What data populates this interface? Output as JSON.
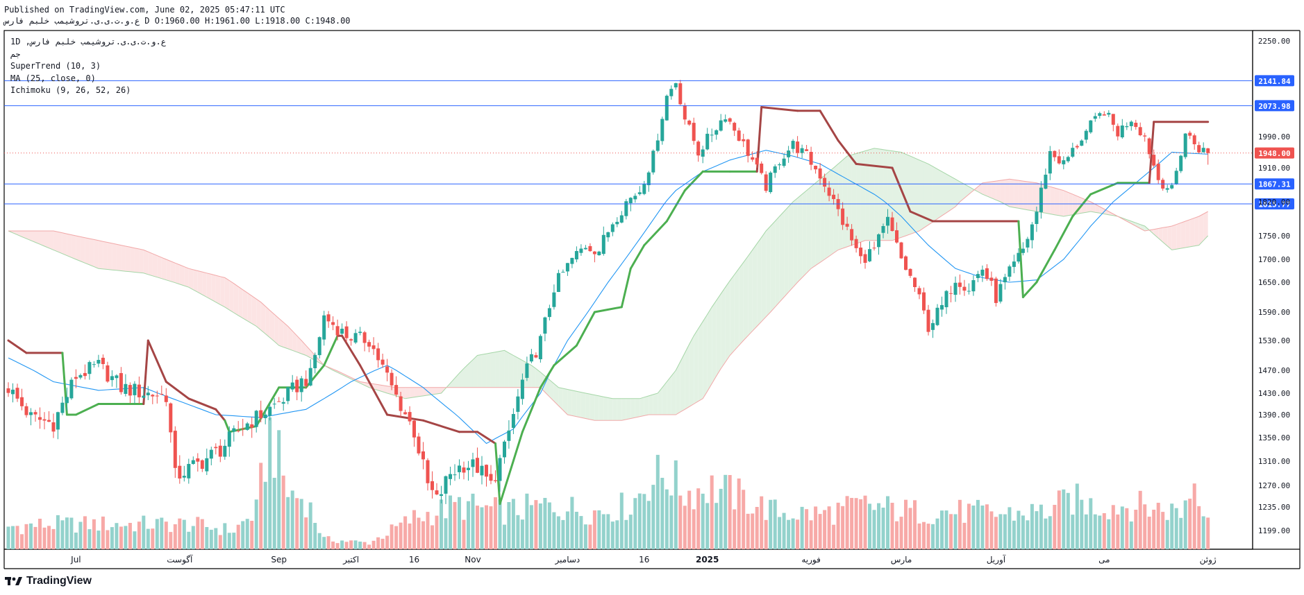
{
  "header": {
    "published": "Published on TradingView.com, June 02, 2025 05:47:11 UTC",
    "ohlc": "ع.و.ت.ی.ی.تروشیمب خلبم فارس D O:1960.00 H:1961.00 L:1918.00 C:1948.00"
  },
  "legend": {
    "symbol": "1D ,ع.و.ت.ی.ی.تروشیمب خلبم فارس",
    "exchange": "جم",
    "supertrend": "SuperTrend (10, 3)",
    "ma": "MA (25, close, 0)",
    "ichimoku": "Ichimoku (9, 26, 52, 26)"
  },
  "footer": {
    "brand": "TradingView"
  },
  "colors": {
    "up": "#26a69a",
    "down": "#ef5350",
    "vol_up": "#93d2cc",
    "vol_down": "#f7a9a7",
    "supertrend_up": "#4caf50",
    "supertrend_down": "#a54545",
    "ma": "#2196f3",
    "hline": "#2962ff",
    "cloud_bull": "#e3f2e4",
    "cloud_bear": "#fce4e4"
  },
  "chart_data": {
    "type": "candlestick",
    "interval": "1D",
    "y_axis": {
      "ticks": [
        2250,
        1990,
        1910,
        1820,
        1750,
        1700,
        1650,
        1590,
        1530,
        1470,
        1430,
        1390,
        1350,
        1310,
        1270,
        1235,
        1199
      ],
      "tick_labels": [
        "2250.00",
        "1990.00",
        "1910.00",
        "1820.00",
        "1750.00",
        "1700.00",
        "1650.00",
        "1590.00",
        "1530.00",
        "1470.00",
        "1430.00",
        "1390.00",
        "1350.00",
        "1310.00",
        "1270.00",
        "1235.00",
        "1199.00"
      ]
    },
    "x_axis": {
      "labels": [
        {
          "text": "Jul",
          "index": 15
        },
        {
          "text": "آگوست",
          "index": 38
        },
        {
          "text": "Sep",
          "index": 60
        },
        {
          "text": "اکتبر",
          "index": 76
        },
        {
          "text": "16",
          "index": 90
        },
        {
          "text": "Nov",
          "index": 103
        },
        {
          "text": "دسامبر",
          "index": 124
        },
        {
          "text": "16",
          "index": 141
        },
        {
          "text": "2025",
          "index": 155
        },
        {
          "text": "فوریه",
          "index": 178
        },
        {
          "text": "مارس",
          "index": 198
        },
        {
          "text": "آوریل",
          "index": 219
        },
        {
          "text": "می",
          "index": 243
        },
        {
          "text": "ژوئن",
          "index": 266
        }
      ],
      "bold": [
        "2025"
      ]
    },
    "price_lines": [
      {
        "value": 2141.84,
        "label": "2141.84"
      },
      {
        "value": 2073.98,
        "label": "2073.98"
      },
      {
        "value": 1867.31,
        "label": "1867.31"
      },
      {
        "value": 1815.77,
        "label": "1815.77"
      }
    ],
    "last_price": {
      "value": 1948.0,
      "label": "1948.00"
    },
    "ohlc_last": {
      "open": 1960.0,
      "high": 1961.0,
      "low": 1918.0,
      "close": 1948.0
    },
    "price_anchors": [
      [
        0,
        1440
      ],
      [
        5,
        1385
      ],
      [
        10,
        1375
      ],
      [
        15,
        1460
      ],
      [
        20,
        1480
      ],
      [
        25,
        1440
      ],
      [
        30,
        1430
      ],
      [
        35,
        1425
      ],
      [
        37,
        1285
      ],
      [
        42,
        1305
      ],
      [
        47,
        1330
      ],
      [
        52,
        1370
      ],
      [
        57,
        1395
      ],
      [
        61,
        1420
      ],
      [
        65,
        1450
      ],
      [
        67,
        1460
      ],
      [
        70,
        1580
      ],
      [
        75,
        1540
      ],
      [
        80,
        1530
      ],
      [
        85,
        1440
      ],
      [
        90,
        1360
      ],
      [
        93,
        1270
      ],
      [
        95,
        1245
      ],
      [
        98,
        1290
      ],
      [
        101,
        1305
      ],
      [
        104,
        1300
      ],
      [
        107,
        1270
      ],
      [
        110,
        1330
      ],
      [
        114,
        1450
      ],
      [
        118,
        1530
      ],
      [
        121,
        1640
      ],
      [
        125,
        1700
      ],
      [
        128,
        1730
      ],
      [
        131,
        1720
      ],
      [
        134,
        1780
      ],
      [
        137,
        1820
      ],
      [
        140,
        1850
      ],
      [
        143,
        1940
      ],
      [
        146,
        2100
      ],
      [
        148,
        2140
      ],
      [
        150,
        2040
      ],
      [
        153,
        1950
      ],
      [
        156,
        2000
      ],
      [
        159,
        2050
      ],
      [
        162,
        1990
      ],
      [
        165,
        1930
      ],
      [
        168,
        1860
      ],
      [
        171,
        1930
      ],
      [
        174,
        1970
      ],
      [
        177,
        1940
      ],
      [
        180,
        1890
      ],
      [
        183,
        1820
      ],
      [
        186,
        1760
      ],
      [
        189,
        1700
      ],
      [
        192,
        1720
      ],
      [
        195,
        1780
      ],
      [
        198,
        1700
      ],
      [
        201,
        1640
      ],
      [
        204,
        1560
      ],
      [
        207,
        1600
      ],
      [
        210,
        1660
      ],
      [
        213,
        1640
      ],
      [
        216,
        1680
      ],
      [
        219,
        1620
      ],
      [
        222,
        1670
      ],
      [
        225,
        1720
      ],
      [
        228,
        1800
      ],
      [
        231,
        1950
      ],
      [
        234,
        1920
      ],
      [
        237,
        1970
      ],
      [
        240,
        2020
      ],
      [
        243,
        2060
      ],
      [
        246,
        2000
      ],
      [
        249,
        2040
      ],
      [
        252,
        1990
      ],
      [
        255,
        1880
      ],
      [
        258,
        1850
      ],
      [
        261,
        2000
      ],
      [
        264,
        1960
      ],
      [
        266,
        1948
      ]
    ],
    "volume_anchors": [
      [
        0,
        0.18
      ],
      [
        10,
        0.2
      ],
      [
        20,
        0.2
      ],
      [
        30,
        0.2
      ],
      [
        40,
        0.2
      ],
      [
        50,
        0.15
      ],
      [
        55,
        0.3
      ],
      [
        58,
        0.95
      ],
      [
        62,
        0.45
      ],
      [
        66,
        0.4
      ],
      [
        70,
        0.08
      ],
      [
        80,
        0.05
      ],
      [
        90,
        0.25
      ],
      [
        100,
        0.35
      ],
      [
        110,
        0.3
      ],
      [
        120,
        0.35
      ],
      [
        130,
        0.3
      ],
      [
        138,
        0.35
      ],
      [
        142,
        0.55
      ],
      [
        146,
        0.6
      ],
      [
        150,
        0.45
      ],
      [
        155,
        0.5
      ],
      [
        160,
        0.45
      ],
      [
        170,
        0.3
      ],
      [
        180,
        0.28
      ],
      [
        190,
        0.35
      ],
      [
        200,
        0.3
      ],
      [
        210,
        0.3
      ],
      [
        220,
        0.28
      ],
      [
        230,
        0.3
      ],
      [
        236,
        0.4
      ],
      [
        240,
        0.35
      ],
      [
        250,
        0.35
      ],
      [
        260,
        0.3
      ],
      [
        263,
        0.55
      ],
      [
        266,
        0.3
      ]
    ],
    "ma_anchors": [
      [
        0,
        1495
      ],
      [
        10,
        1450
      ],
      [
        20,
        1435
      ],
      [
        30,
        1440
      ],
      [
        38,
        1415
      ],
      [
        46,
        1390
      ],
      [
        56,
        1385
      ],
      [
        66,
        1400
      ],
      [
        76,
        1450
      ],
      [
        84,
        1480
      ],
      [
        92,
        1440
      ],
      [
        100,
        1385
      ],
      [
        106,
        1340
      ],
      [
        112,
        1365
      ],
      [
        118,
        1430
      ],
      [
        124,
        1530
      ],
      [
        130,
        1610
      ],
      [
        136,
        1690
      ],
      [
        142,
        1770
      ],
      [
        148,
        1850
      ],
      [
        154,
        1900
      ],
      [
        160,
        1930
      ],
      [
        168,
        1955
      ],
      [
        174,
        1940
      ],
      [
        180,
        1920
      ],
      [
        186,
        1880
      ],
      [
        192,
        1840
      ],
      [
        198,
        1790
      ],
      [
        204,
        1730
      ],
      [
        210,
        1680
      ],
      [
        216,
        1660
      ],
      [
        222,
        1650
      ],
      [
        228,
        1655
      ],
      [
        234,
        1700
      ],
      [
        240,
        1770
      ],
      [
        246,
        1830
      ],
      [
        252,
        1890
      ],
      [
        258,
        1950
      ],
      [
        266,
        1945
      ]
    ],
    "supertrend_anchors": [
      [
        0,
        1530,
        "down"
      ],
      [
        4,
        1505,
        "down"
      ],
      [
        12,
        1505,
        "down"
      ],
      [
        13,
        1390,
        "up"
      ],
      [
        15,
        1390,
        "up"
      ],
      [
        20,
        1410,
        "up"
      ],
      [
        26,
        1410,
        "up"
      ],
      [
        30,
        1410,
        "up"
      ],
      [
        31,
        1530,
        "down"
      ],
      [
        35,
        1450,
        "down"
      ],
      [
        40,
        1420,
        "down"
      ],
      [
        46,
        1400,
        "down"
      ],
      [
        48,
        1380,
        "down"
      ],
      [
        49,
        1360,
        "up"
      ],
      [
        55,
        1370,
        "up"
      ],
      [
        60,
        1440,
        "up"
      ],
      [
        66,
        1440,
        "up"
      ],
      [
        70,
        1480,
        "up"
      ],
      [
        73,
        1540,
        "up"
      ],
      [
        74,
        1540,
        "down"
      ],
      [
        78,
        1480,
        "down"
      ],
      [
        84,
        1390,
        "down"
      ],
      [
        92,
        1380,
        "down"
      ],
      [
        100,
        1360,
        "down"
      ],
      [
        104,
        1360,
        "down"
      ],
      [
        108,
        1340,
        "down"
      ],
      [
        109,
        1240,
        "up"
      ],
      [
        114,
        1360,
        "up"
      ],
      [
        118,
        1440,
        "up"
      ],
      [
        121,
        1480,
        "up"
      ],
      [
        126,
        1520,
        "up"
      ],
      [
        130,
        1590,
        "up"
      ],
      [
        136,
        1600,
        "up"
      ],
      [
        138,
        1680,
        "up"
      ],
      [
        141,
        1730,
        "up"
      ],
      [
        146,
        1780,
        "up"
      ],
      [
        150,
        1850,
        "up"
      ],
      [
        154,
        1900,
        "up"
      ],
      [
        160,
        1900,
        "up"
      ],
      [
        166,
        1900,
        "up"
      ],
      [
        167,
        2070,
        "down"
      ],
      [
        175,
        2060,
        "down"
      ],
      [
        180,
        2060,
        "down"
      ],
      [
        184,
        1980,
        "down"
      ],
      [
        188,
        1920,
        "down"
      ],
      [
        196,
        1910,
        "down"
      ],
      [
        200,
        1800,
        "down"
      ],
      [
        205,
        1780,
        "down"
      ],
      [
        212,
        1780,
        "down"
      ],
      [
        219,
        1780,
        "down"
      ],
      [
        224,
        1780,
        "down"
      ],
      [
        225,
        1620,
        "up"
      ],
      [
        228,
        1650,
        "up"
      ],
      [
        232,
        1720,
        "up"
      ],
      [
        236,
        1790,
        "up"
      ],
      [
        240,
        1840,
        "up"
      ],
      [
        246,
        1870,
        "up"
      ],
      [
        253,
        1870,
        "up"
      ],
      [
        254,
        2030,
        "down"
      ],
      [
        266,
        2030,
        "down"
      ]
    ],
    "cloud_a_anchors": [
      [
        0,
        1760
      ],
      [
        10,
        1720
      ],
      [
        20,
        1680
      ],
      [
        30,
        1670
      ],
      [
        40,
        1640
      ],
      [
        48,
        1600
      ],
      [
        55,
        1560
      ],
      [
        60,
        1520
      ],
      [
        66,
        1500
      ],
      [
        72,
        1470
      ],
      [
        80,
        1440
      ],
      [
        88,
        1420
      ],
      [
        96,
        1430
      ],
      [
        104,
        1500
      ],
      [
        110,
        1510
      ],
      [
        116,
        1480
      ],
      [
        122,
        1440
      ],
      [
        128,
        1430
      ],
      [
        134,
        1420
      ],
      [
        140,
        1420
      ],
      [
        144,
        1430
      ],
      [
        148,
        1470
      ],
      [
        152,
        1540
      ],
      [
        156,
        1600
      ],
      [
        162,
        1680
      ],
      [
        168,
        1760
      ],
      [
        174,
        1820
      ],
      [
        180,
        1880
      ],
      [
        186,
        1940
      ],
      [
        192,
        1960
      ],
      [
        198,
        1950
      ],
      [
        204,
        1920
      ],
      [
        210,
        1880
      ],
      [
        216,
        1840
      ],
      [
        222,
        1810
      ],
      [
        228,
        1800
      ],
      [
        234,
        1790
      ],
      [
        240,
        1800
      ],
      [
        246,
        1790
      ],
      [
        252,
        1770
      ],
      [
        258,
        1720
      ],
      [
        264,
        1730
      ],
      [
        266,
        1750
      ]
    ],
    "cloud_b_anchors": [
      [
        0,
        1760
      ],
      [
        10,
        1760
      ],
      [
        20,
        1740
      ],
      [
        30,
        1720
      ],
      [
        40,
        1680
      ],
      [
        48,
        1660
      ],
      [
        56,
        1610
      ],
      [
        62,
        1560
      ],
      [
        70,
        1480
      ],
      [
        78,
        1450
      ],
      [
        86,
        1440
      ],
      [
        94,
        1440
      ],
      [
        102,
        1440
      ],
      [
        110,
        1440
      ],
      [
        118,
        1440
      ],
      [
        124,
        1390
      ],
      [
        130,
        1380
      ],
      [
        136,
        1380
      ],
      [
        142,
        1390
      ],
      [
        148,
        1390
      ],
      [
        154,
        1420
      ],
      [
        160,
        1500
      ],
      [
        166,
        1560
      ],
      [
        172,
        1620
      ],
      [
        178,
        1680
      ],
      [
        184,
        1720
      ],
      [
        190,
        1740
      ],
      [
        196,
        1740
      ],
      [
        202,
        1760
      ],
      [
        210,
        1810
      ],
      [
        216,
        1870
      ],
      [
        222,
        1880
      ],
      [
        228,
        1870
      ],
      [
        234,
        1850
      ],
      [
        240,
        1820
      ],
      [
        246,
        1790
      ],
      [
        252,
        1760
      ],
      [
        258,
        1770
      ],
      [
        264,
        1790
      ],
      [
        266,
        1800
      ]
    ]
  }
}
